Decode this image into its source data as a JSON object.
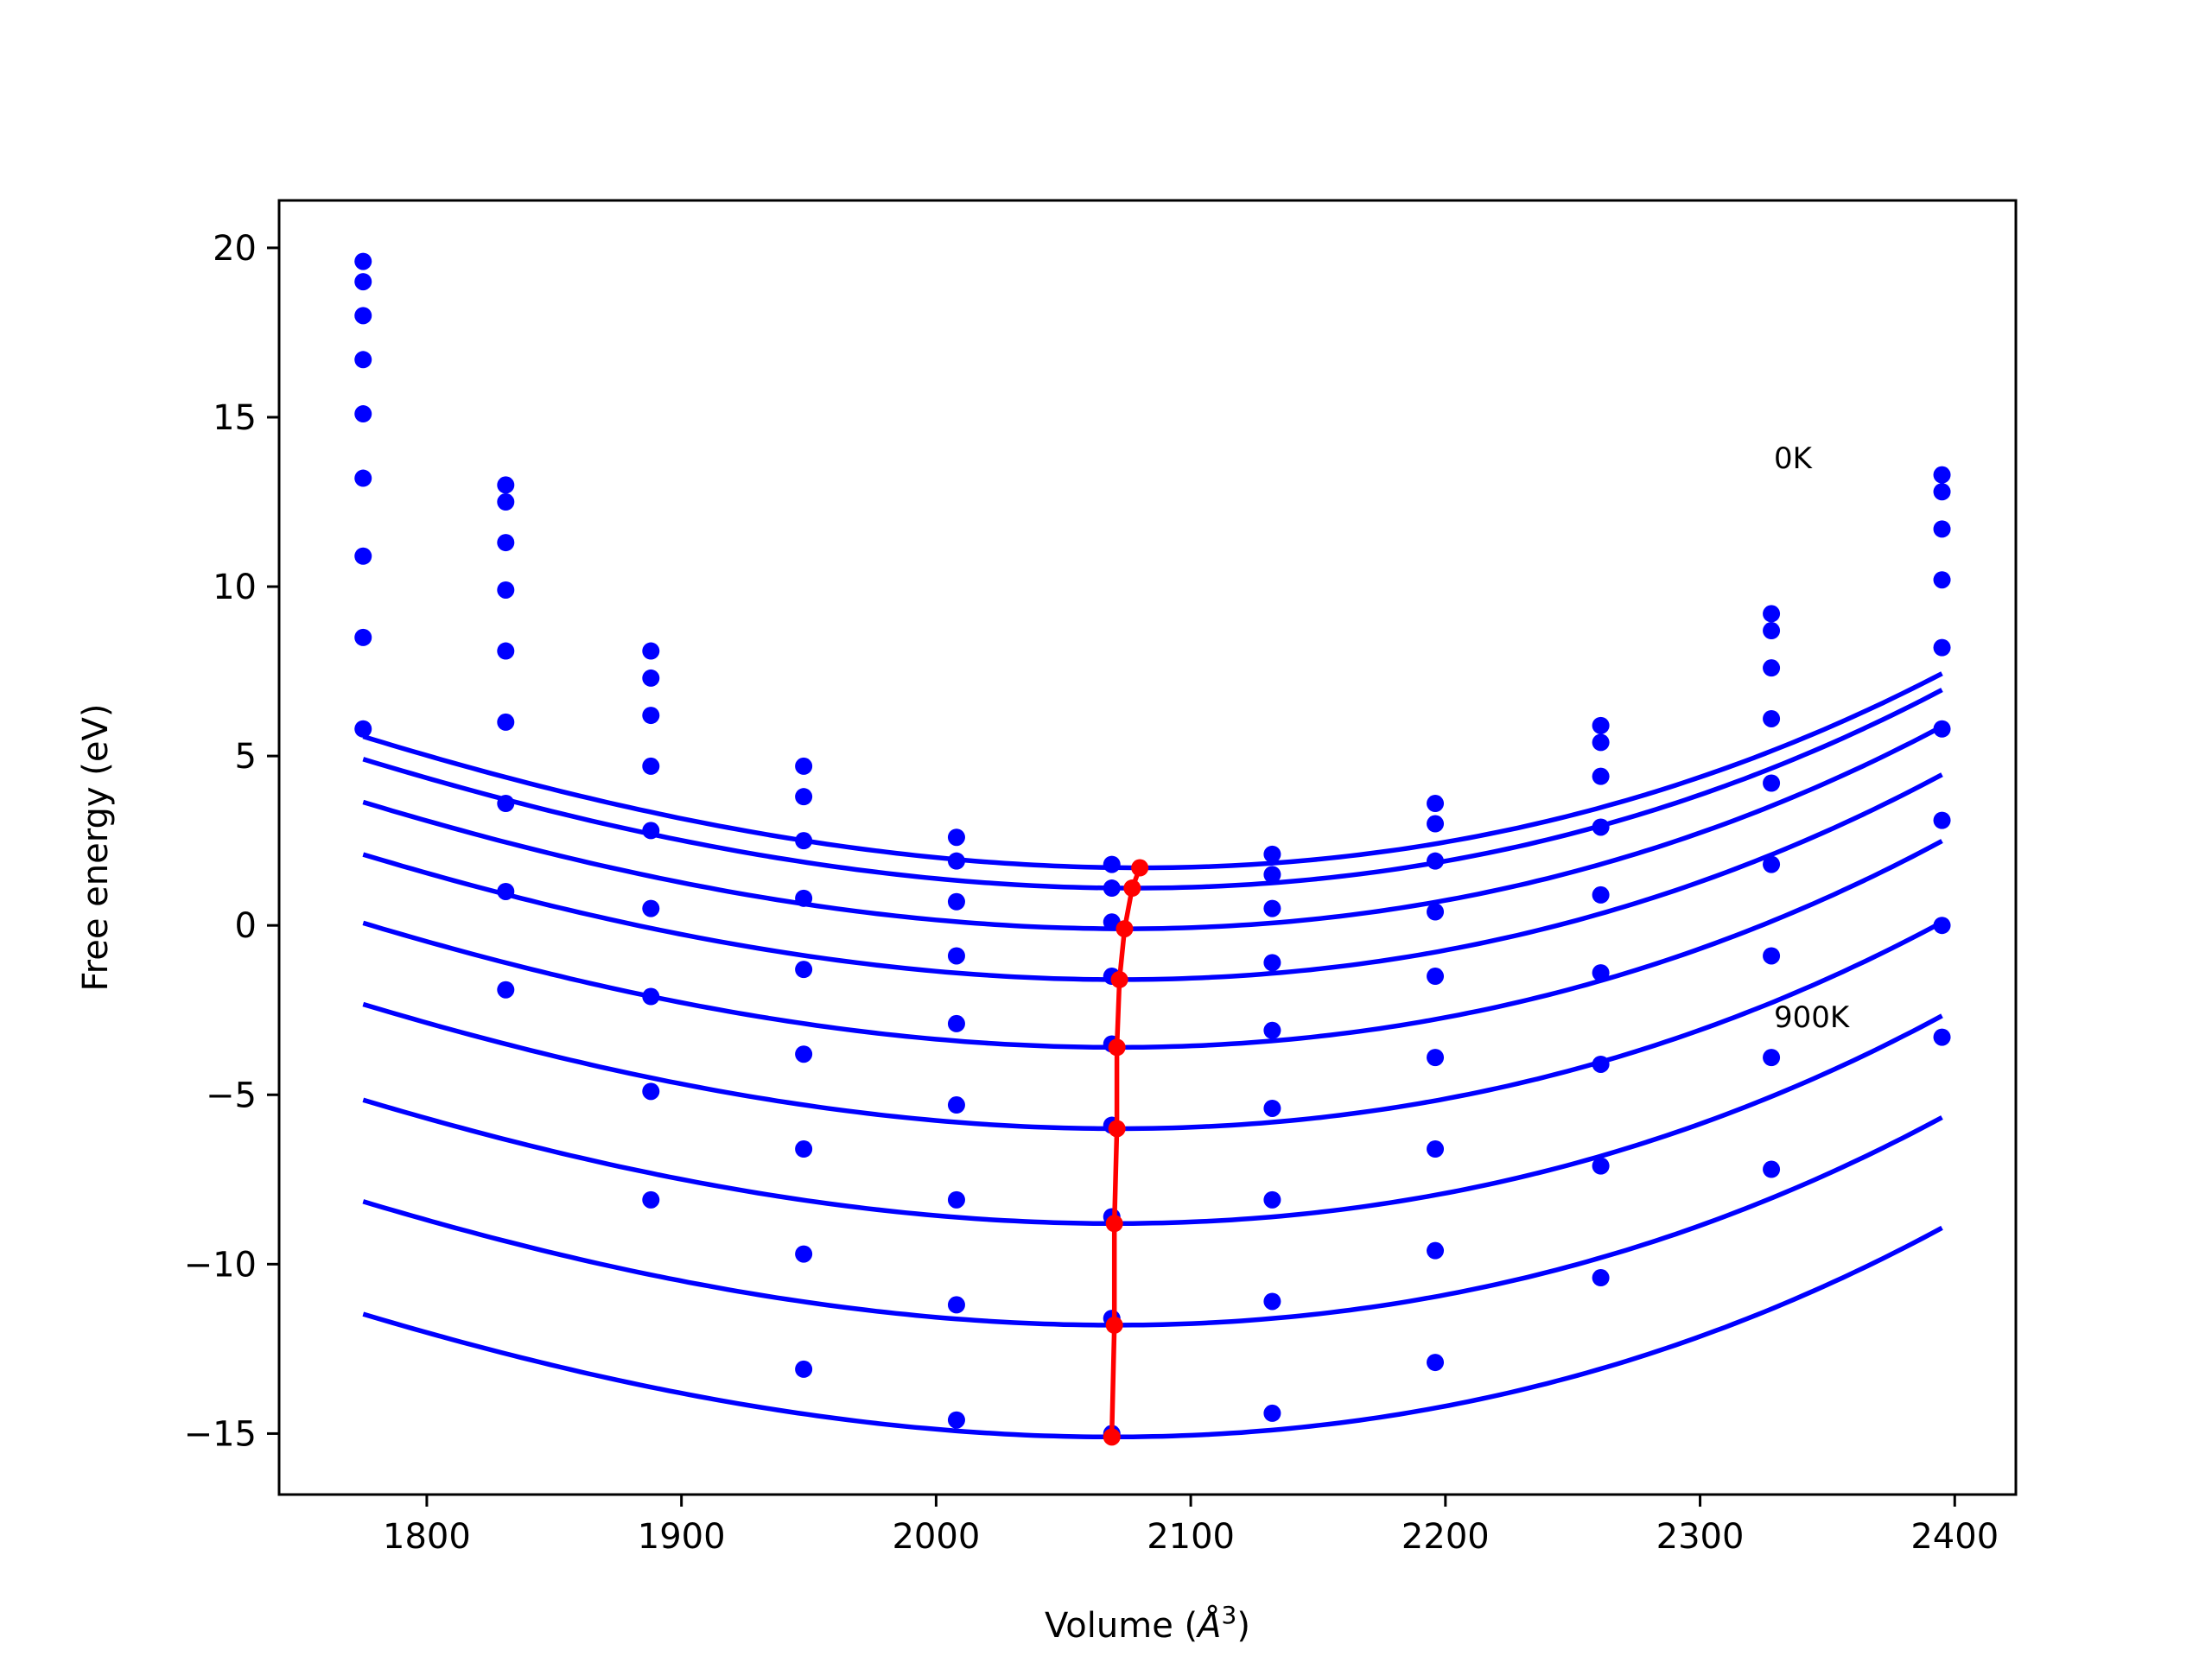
{
  "chart_data": {
    "type": "line",
    "title": "",
    "xlabel": "Volume (Å³)",
    "xlabel_parts": {
      "prefix": "Volume (",
      "unit": "Å",
      "exponent": "3",
      "suffix": ")"
    },
    "ylabel": "Free energy (eV)",
    "xlim": [
      1742,
      2424
    ],
    "ylim": [
      -16.8,
      21.4
    ],
    "xticks": [
      1800,
      1900,
      2000,
      2100,
      2200,
      2300,
      2400
    ],
    "yticks": [
      20,
      15,
      10,
      5,
      0,
      -5,
      -10,
      -15
    ],
    "xtick_labels": [
      "1800",
      "1900",
      "2000",
      "2100",
      "2200",
      "2300",
      "2400"
    ],
    "ytick_labels": [
      "20",
      "15",
      "10",
      "5",
      "0",
      "−5",
      "−10",
      "−15"
    ],
    "grid": false,
    "legend": "none",
    "annotations": [
      {
        "text": "0K",
        "x": 2329,
        "y": 13.5
      },
      {
        "text": "900K",
        "x": 2329,
        "y": -3.0
      }
    ],
    "volumes": [
      1775,
      1831,
      1888,
      1948,
      2008,
      2069,
      2132,
      2196,
      2261,
      2328,
      2395
    ],
    "series": [
      {
        "color": "#0000ff",
        "v0": 2080,
        "e0": 1.7,
        "a": 4.96e-05,
        "b": 2.6e-08,
        "points": [
          19.6,
          13.0,
          8.1,
          4.7,
          2.6,
          1.8,
          2.1,
          3.6,
          5.9,
          9.2,
          13.3
        ]
      },
      {
        "color": "#0000ff",
        "v0": 2077,
        "e0": 1.1,
        "a": 4.96e-05,
        "b": 2.6e-08,
        "points": [
          19.0,
          12.5,
          7.3,
          3.8,
          1.9,
          1.1,
          1.5,
          3.0,
          5.4,
          8.7,
          12.8
        ]
      },
      {
        "color": "#0000ff",
        "v0": 2074,
        "e0": -0.1,
        "a": 4.96e-05,
        "b": 2.6e-08,
        "points": [
          18.0,
          11.3,
          6.2,
          2.5,
          0.7,
          0.1,
          0.5,
          1.9,
          4.4,
          7.6,
          11.7
        ]
      },
      {
        "color": "#0000ff",
        "v0": 2072,
        "e0": -1.6,
        "a": 4.96e-05,
        "b": 2.6e-08,
        "points": [
          16.7,
          9.9,
          4.7,
          0.8,
          -0.9,
          -1.5,
          -1.1,
          0.4,
          2.9,
          6.1,
          10.2
        ]
      },
      {
        "color": "#0000ff",
        "v0": 2071,
        "e0": -3.6,
        "a": 4.96e-05,
        "b": 2.6e-08,
        "points": [
          15.1,
          8.1,
          2.8,
          -1.3,
          -2.9,
          -3.5,
          -3.1,
          -1.5,
          0.9,
          4.2,
          8.2
        ]
      },
      {
        "color": "#0000ff",
        "v0": 2071,
        "e0": -6.0,
        "a": 4.96e-05,
        "b": 2.6e-08,
        "points": [
          13.2,
          6.0,
          0.5,
          -3.8,
          -5.3,
          -5.9,
          -5.4,
          -3.9,
          -1.4,
          1.8,
          5.8
        ]
      },
      {
        "color": "#0000ff",
        "v0": 2070,
        "e0": -8.8,
        "a": 4.96e-05,
        "b": 2.6e-08,
        "points": [
          10.9,
          3.6,
          -2.1,
          -6.6,
          -8.1,
          -8.6,
          -8.1,
          -6.6,
          -4.1,
          -0.9,
          3.1
        ]
      },
      {
        "color": "#0000ff",
        "v0": 2070,
        "e0": -11.8,
        "a": 4.96e-05,
        "b": 2.6e-08,
        "points": [
          8.5,
          1.0,
          -4.9,
          -9.7,
          -11.2,
          -11.6,
          -11.1,
          -9.6,
          -7.1,
          -3.9,
          0.0
        ]
      },
      {
        "color": "#0000ff",
        "v0": 2069,
        "e0": -15.1,
        "a": 4.96e-05,
        "b": 2.6e-08,
        "points": [
          5.8,
          -1.9,
          -8.1,
          -13.1,
          -14.6,
          -15.0,
          -14.4,
          -12.9,
          -10.4,
          -7.2,
          -3.3
        ]
      }
    ],
    "minimum_curve": {
      "color": "#ff0000",
      "x": [
        2080,
        2077,
        2074,
        2072,
        2071,
        2071,
        2070,
        2070,
        2069
      ],
      "y": [
        1.7,
        1.1,
        -0.1,
        -1.6,
        -3.6,
        -6.0,
        -8.8,
        -11.8,
        -15.1
      ]
    }
  }
}
